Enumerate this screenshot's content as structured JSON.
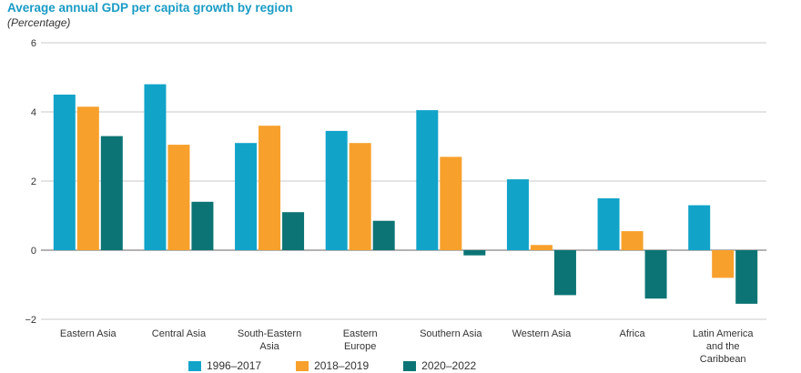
{
  "chart_data": {
    "type": "bar",
    "title": "Average annual GDP per capita growth by region",
    "subtitle": "(Percentage)",
    "ylim": [
      -2,
      6
    ],
    "yticks": [
      -2,
      0,
      2,
      4,
      6
    ],
    "grid": true,
    "legend_position": "bottom",
    "categories": [
      [
        "Eastern Asia"
      ],
      [
        "Central Asia"
      ],
      [
        "South-Eastern",
        "Asia"
      ],
      [
        "Eastern",
        "Europe"
      ],
      [
        "Southern Asia"
      ],
      [
        "Western Asia"
      ],
      [
        "Africa"
      ],
      [
        "Latin America",
        "and the",
        "Caribbean"
      ]
    ],
    "series": [
      {
        "name": "1996–2017",
        "color": "#12a3c9",
        "values": [
          4.5,
          4.8,
          3.1,
          3.45,
          4.05,
          2.05,
          1.5,
          1.3
        ]
      },
      {
        "name": "2018–2019",
        "color": "#f7a02c",
        "values": [
          4.15,
          3.05,
          3.6,
          3.1,
          2.7,
          0.15,
          0.55,
          -0.8
        ]
      },
      {
        "name": "2020–2022",
        "color": "#0c7474",
        "values": [
          3.3,
          1.4,
          1.1,
          0.85,
          -0.15,
          -1.3,
          -1.4,
          -1.55
        ]
      }
    ]
  }
}
